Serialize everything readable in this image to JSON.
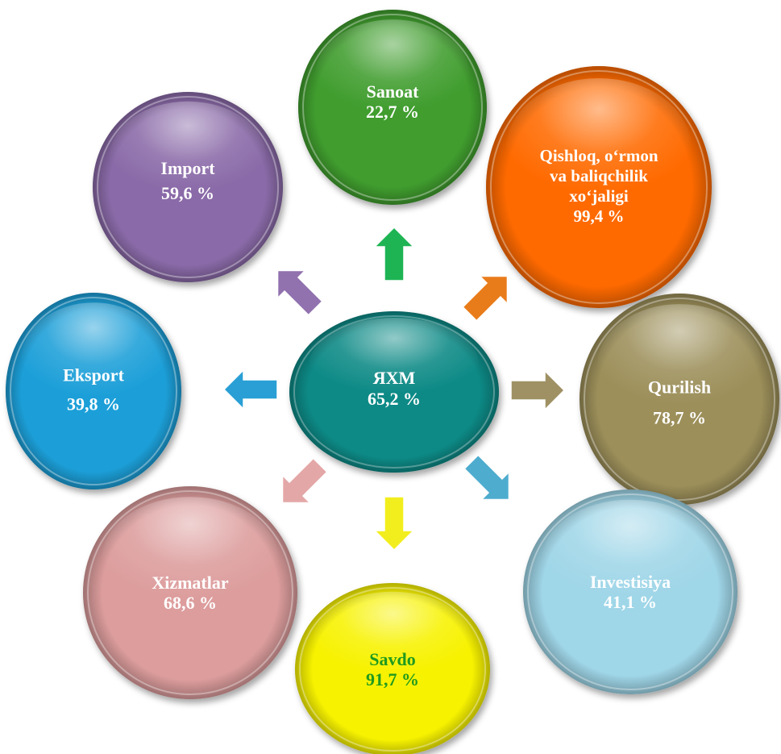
{
  "center": {
    "label": "ЯХМ",
    "value": "65,2 %",
    "color": "#0f8a86",
    "text_color": "#ffffff"
  },
  "nodes": [
    {
      "id": "sanoat",
      "lines": [
        "Sanoat",
        "22,7 %"
      ],
      "color": "#3f9d2f",
      "text_color": "#ffffff",
      "arrow_color": "#12b04b"
    },
    {
      "id": "qishloq",
      "lines": [
        "Qishloq, o‘rmon",
        "va baliqchilik",
        "xo‘jaligi",
        "99,4 %"
      ],
      "color": "#ff6a00",
      "text_color": "#ffffff",
      "arrow_color": "#e8760e"
    },
    {
      "id": "qurilish",
      "lines": [
        "Qurilish",
        "78,7 %"
      ],
      "color": "#9c8f5a",
      "text_color": "#ffffff",
      "arrow_color": "#9a8c5c"
    },
    {
      "id": "investisiya",
      "lines": [
        "Investisiya",
        "41,1 %"
      ],
      "color": "#9fd6e8",
      "text_color": "#ffffff",
      "arrow_color": "#45a8cc"
    },
    {
      "id": "savdo",
      "lines": [
        "Savdo",
        "91,7 %"
      ],
      "color": "#f7f200",
      "text_color": "#1f9a1f",
      "arrow_color": "#f2ee12"
    },
    {
      "id": "xizmatlar",
      "lines": [
        "Xizmatlar",
        "68,6 %"
      ],
      "color": "#dd9d9d",
      "text_color": "#ffffff",
      "arrow_color": "#e3a3a3"
    },
    {
      "id": "eksport",
      "lines": [
        "Eksport",
        "39,8 %"
      ],
      "color": "#1a9fd8",
      "text_color": "#ffffff",
      "arrow_color": "#1e9ad3"
    },
    {
      "id": "import",
      "lines": [
        "Import",
        "59,6 %"
      ],
      "color": "#8a6aa8",
      "text_color": "#ffffff",
      "arrow_color": "#8c6aaa"
    }
  ]
}
